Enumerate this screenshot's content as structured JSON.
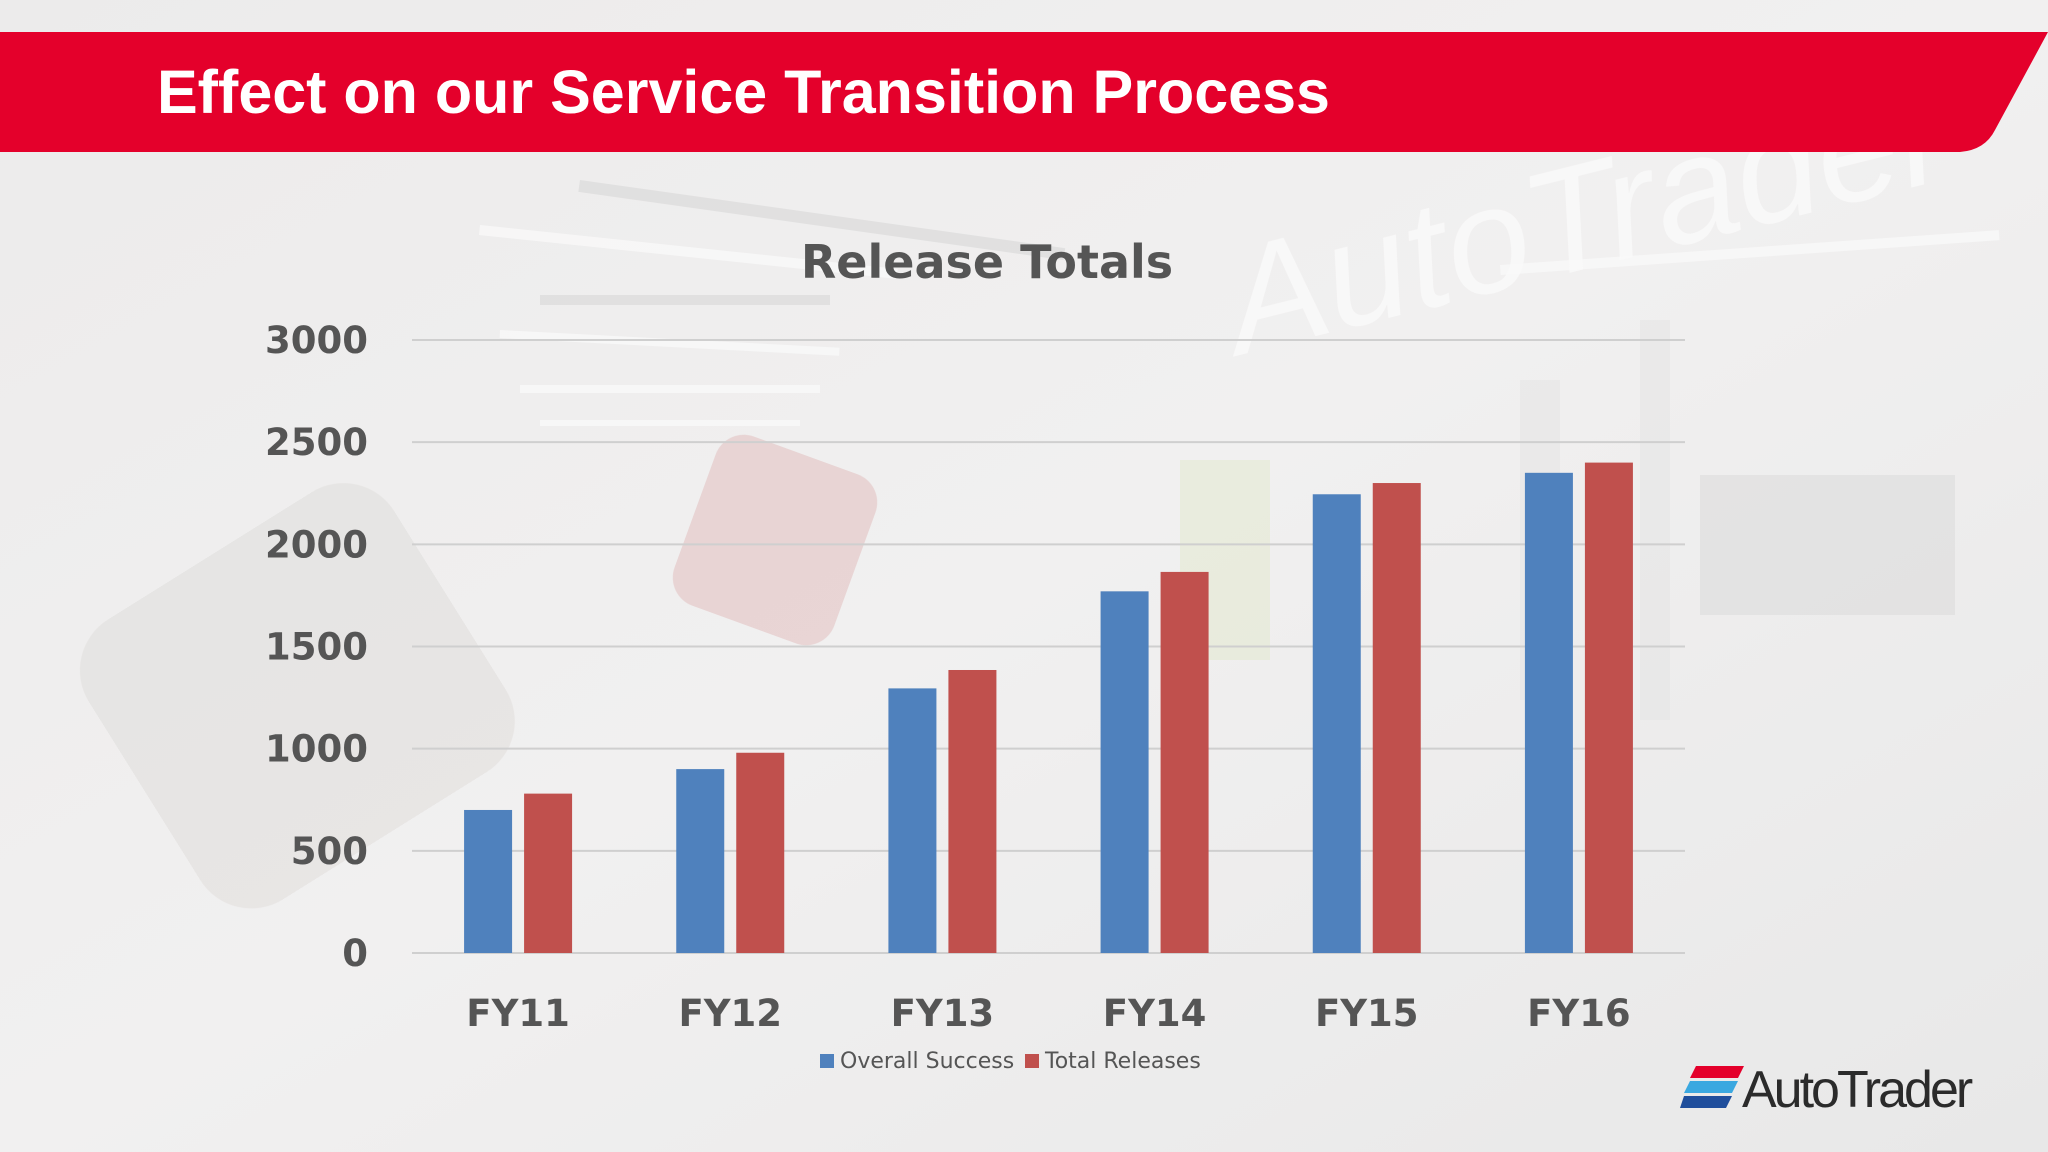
{
  "slide": {
    "title": "Effect on our Service Transition Process",
    "brand_color": "#e4002b",
    "logo_text": "AutoTrader"
  },
  "chart_data": {
    "type": "bar",
    "title": "Release Totals",
    "xlabel": "",
    "ylabel": "",
    "categories": [
      "FY11",
      "FY12",
      "FY13",
      "FY14",
      "FY15",
      "FY16"
    ],
    "series": [
      {
        "name": "Overall Success",
        "color": "#4f81bd",
        "values": [
          700,
          900,
          1295,
          1770,
          2245,
          2350
        ]
      },
      {
        "name": "Total Releases",
        "color": "#c0504d",
        "values": [
          780,
          980,
          1385,
          1865,
          2300,
          2400
        ]
      }
    ],
    "ylim": [
      0,
      3000
    ],
    "yticks": [
      0,
      500,
      1000,
      1500,
      2000,
      2500,
      3000
    ],
    "grid": true,
    "legend_position": "bottom"
  }
}
